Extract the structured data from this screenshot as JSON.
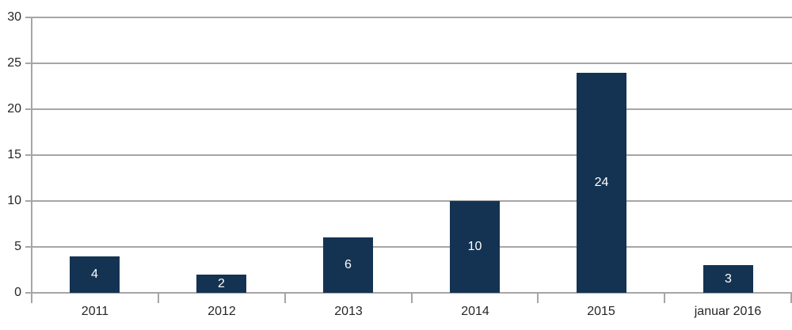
{
  "chart_data": {
    "type": "bar",
    "title": "",
    "xlabel": "",
    "ylabel": "",
    "categories": [
      "2011",
      "2012",
      "2013",
      "2014",
      "2015",
      "januar 2016"
    ],
    "values": [
      4,
      2,
      6,
      10,
      24,
      3
    ],
    "bar_value_labels": [
      "4",
      "2",
      "6",
      "10",
      "24",
      "3"
    ],
    "ylim": [
      0,
      30
    ],
    "ytick_step": 5,
    "ytick_labels": [
      "0",
      "5",
      "10",
      "15",
      "20",
      "25",
      "30"
    ],
    "grid": true,
    "legend_position": "none",
    "colors": {
      "bar": "#143352",
      "gridline": "#a6a6a6",
      "axis": "#a6a6a6",
      "axis_text": "#262626",
      "bar_label_text": "#ffffff",
      "background": "#ffffff"
    }
  }
}
